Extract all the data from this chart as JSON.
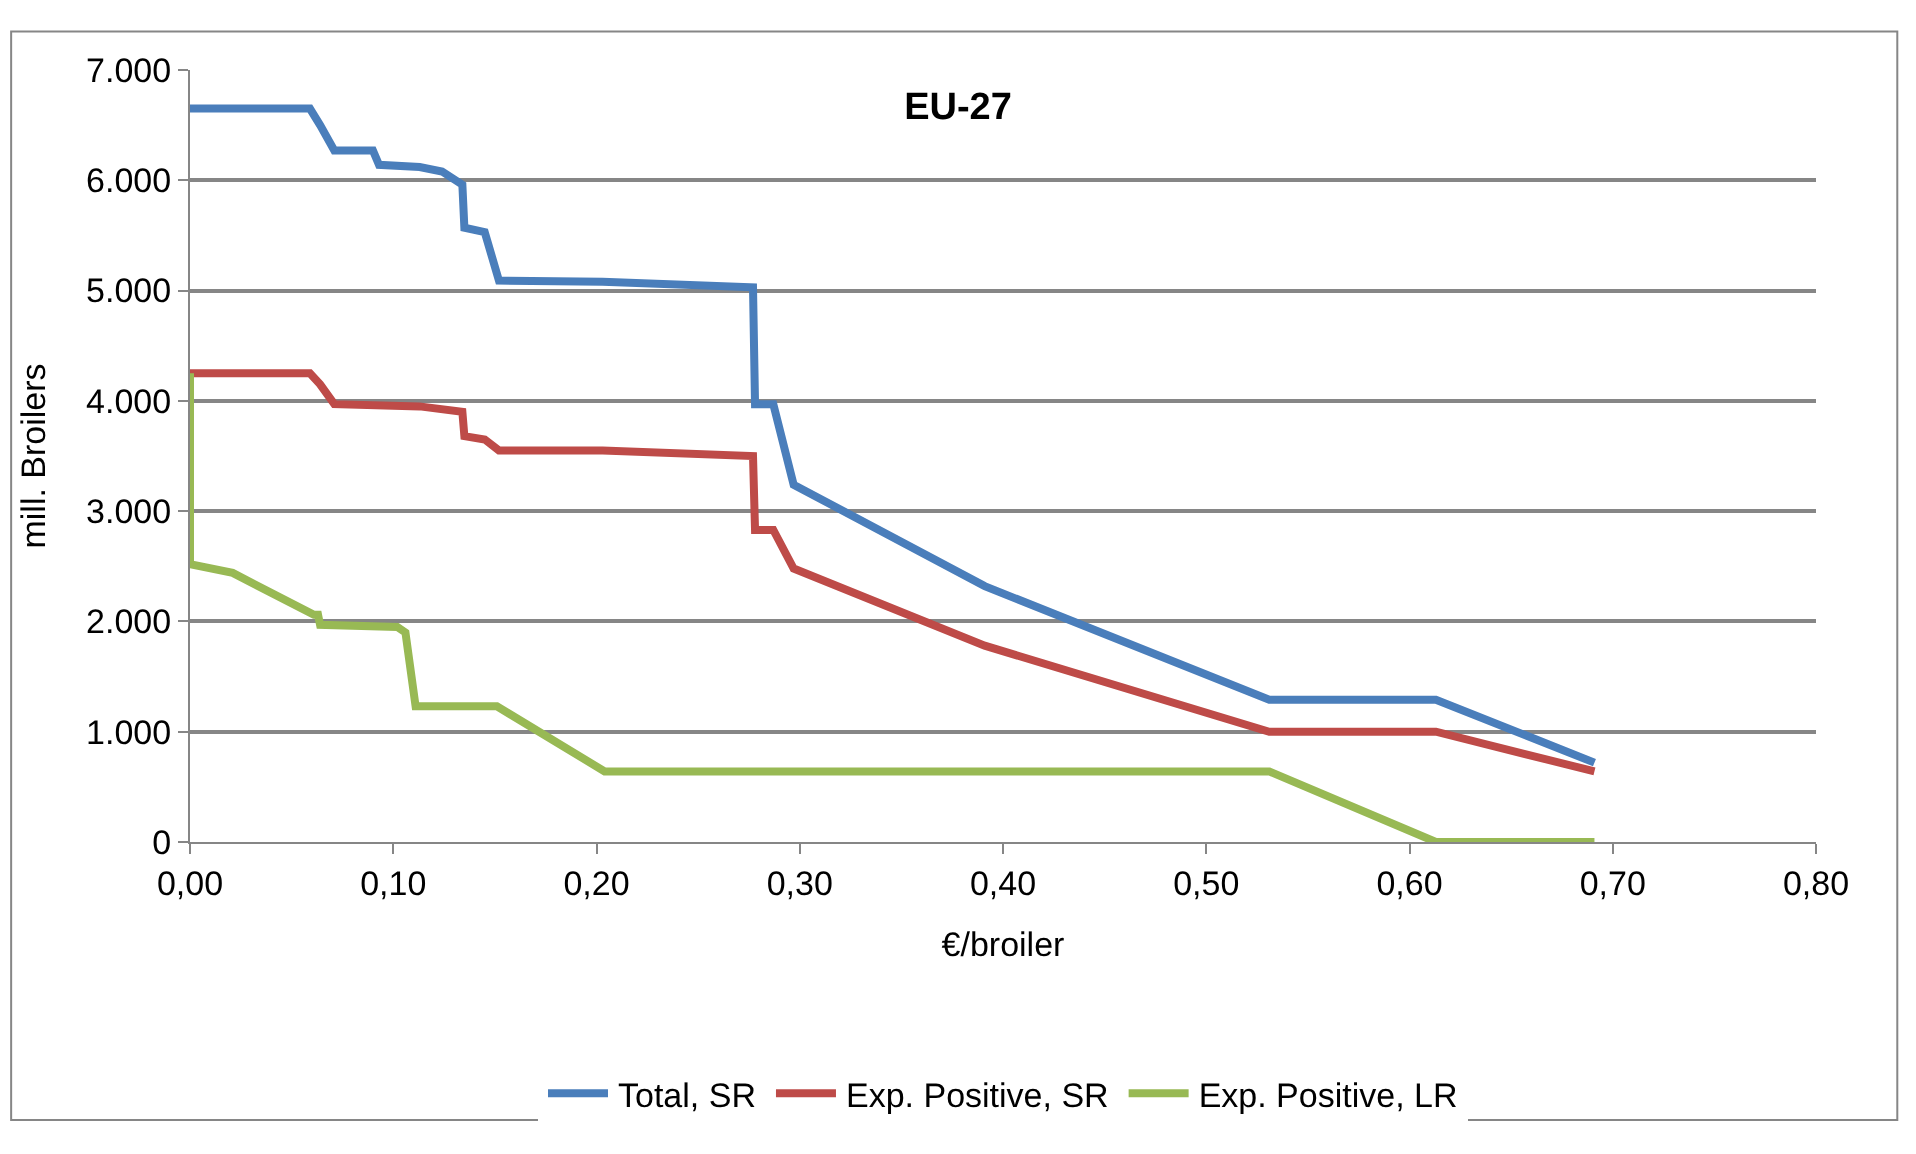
{
  "chart_data": {
    "type": "line",
    "title": "EU-27",
    "xlabel": "€/broiler",
    "ylabel": "mill. Broilers",
    "xlim": [
      0,
      0.8
    ],
    "xticks": [
      {
        "value": 0,
        "label": "0,00"
      },
      {
        "value": 0.1,
        "label": "0,10"
      },
      {
        "value": 0.2,
        "label": "0,20"
      },
      {
        "value": 0.3,
        "label": "0,30"
      },
      {
        "value": 0.4,
        "label": "0,40"
      },
      {
        "value": 0.5,
        "label": "0,50"
      },
      {
        "value": 0.6,
        "label": "0,60"
      },
      {
        "value": 0.7,
        "label": "0,70"
      },
      {
        "value": 0.8,
        "label": "0,80"
      }
    ],
    "ylim": [
      0,
      7000
    ],
    "yticks": [
      0,
      {
        "value": 1000,
        "label": "1.000"
      },
      {
        "value": 2000,
        "label": "2.000"
      },
      {
        "value": 3000,
        "label": "3.000"
      },
      {
        "value": 4000,
        "label": "4.000"
      },
      {
        "value": 5000,
        "label": "5.000"
      },
      {
        "value": 6000,
        "label": "6.000"
      },
      {
        "value": 7000,
        "label": "7.000"
      }
    ],
    "grid": "y",
    "legend": "bottom",
    "marker": "none",
    "line_style": "solid",
    "series": [
      {
        "name": "Total, SR",
        "color": "#4a7ebb",
        "x": [
          0,
          0.059,
          0.064,
          0.071,
          0.09,
          0.093,
          0.113,
          0.124,
          0.134,
          0.135,
          0.145,
          0.152,
          0.203,
          0.277,
          0.278,
          0.287,
          0.297,
          0.391,
          0.531,
          0.613,
          0.691
        ],
        "values": [
          6650,
          6650,
          6500,
          6270,
          6270,
          6140,
          6120,
          6080,
          5960,
          5570,
          5530,
          5090,
          5080,
          5030,
          3970,
          3970,
          3240,
          2320,
          1290,
          1290,
          720
        ]
      },
      {
        "name": "Exp. Positive, SR",
        "color": "#be4b48",
        "x": [
          0,
          0.059,
          0.064,
          0.071,
          0.113,
          0.134,
          0.135,
          0.145,
          0.152,
          0.203,
          0.277,
          0.278,
          0.287,
          0.297,
          0.391,
          0.531,
          0.613,
          0.691
        ],
        "values": [
          4250,
          4250,
          4150,
          3970,
          3950,
          3900,
          3680,
          3650,
          3550,
          3550,
          3500,
          2830,
          2830,
          2480,
          1780,
          1000,
          1000,
          640
        ]
      },
      {
        "name": "Exp. Positive, LR",
        "color": "#98b954",
        "x": [
          0,
          0,
          0.021,
          0.061,
          0.063,
          0.064,
          0.102,
          0.106,
          0.111,
          0.151,
          0.204,
          0.531,
          0.613,
          0.691
        ],
        "values": [
          4250,
          2520,
          2440,
          2060,
          2060,
          1970,
          1950,
          1900,
          1230,
          1230,
          640,
          640,
          0,
          0
        ]
      }
    ]
  }
}
